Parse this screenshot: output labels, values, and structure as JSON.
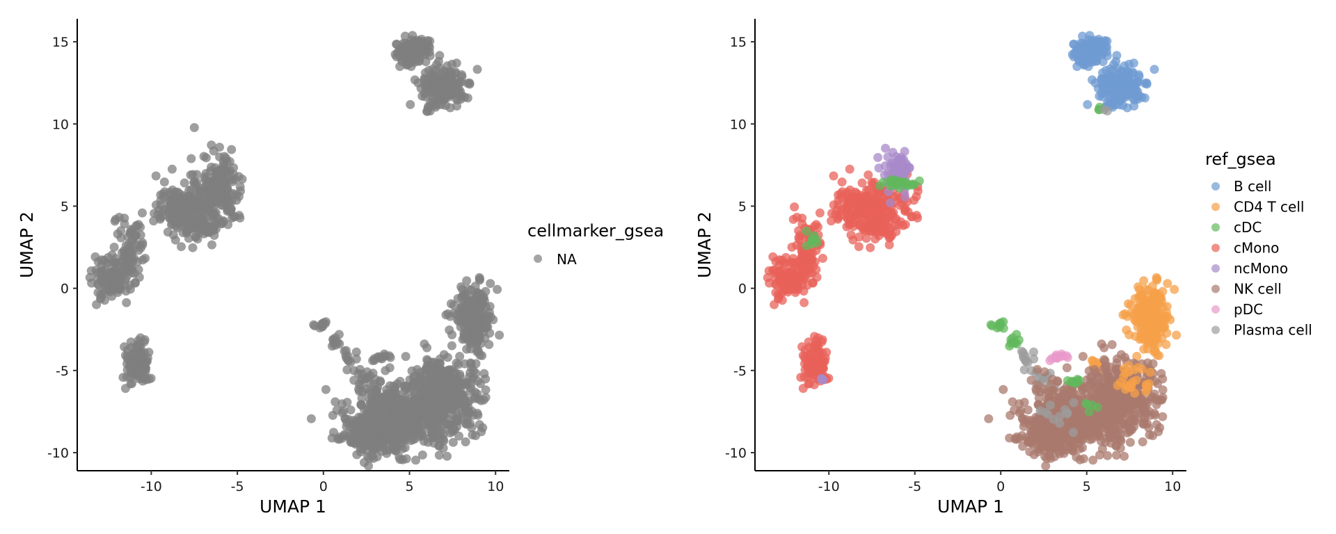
{
  "chart_data": [
    {
      "type": "scatter",
      "xlabel": "UMAP 1",
      "ylabel": "UMAP 2",
      "xlim": [
        -14.3,
        10.8
      ],
      "ylim": [
        -11.1,
        16.4
      ],
      "xticks": [
        -10,
        -5,
        0,
        5,
        10
      ],
      "yticks": [
        -10,
        -5,
        0,
        5,
        10,
        15
      ],
      "xtick_labels": [
        "-10",
        "-5",
        "0",
        "5",
        "10"
      ],
      "ytick_labels": [
        "-10",
        "-5",
        "0",
        "5",
        "10",
        "15"
      ],
      "grid": false,
      "legend": {
        "title": "cellmarker_gsea",
        "placement": "right",
        "entries": [
          {
            "label": "NA",
            "color": "#7f7f7f"
          }
        ]
      },
      "default_color": "#7f7f7f",
      "clusters": [
        {
          "x": 5.0,
          "y": 14.3,
          "sx": 0.5,
          "sy": 0.35,
          "n": 80
        },
        {
          "x": 5.6,
          "y": 14.8,
          "sx": 0.35,
          "sy": 0.2,
          "n": 50
        },
        {
          "x": 7.0,
          "y": 12.2,
          "sx": 0.65,
          "sy": 0.6,
          "n": 170
        },
        {
          "x": 6.0,
          "y": 10.8,
          "sx": 0.15,
          "sy": 0.1,
          "n": 4
        },
        {
          "x": -7.6,
          "y": 5.0,
          "sx": 1.1,
          "sy": 0.85,
          "n": 230
        },
        {
          "x": -6.1,
          "y": 6.6,
          "sx": 0.6,
          "sy": 0.9,
          "n": 110
        },
        {
          "x": -7.3,
          "y": 3.8,
          "sx": 0.7,
          "sy": 0.35,
          "n": 60
        },
        {
          "x": -11.3,
          "y": 2.5,
          "sx": 0.4,
          "sy": 1.0,
          "n": 70
        },
        {
          "x": -12.2,
          "y": 0.6,
          "sx": 0.65,
          "sy": 0.6,
          "n": 110
        },
        {
          "x": -10.8,
          "y": -4.6,
          "sx": 0.35,
          "sy": 0.7,
          "n": 120
        },
        {
          "x": -0.1,
          "y": -2.3,
          "sx": 0.2,
          "sy": 0.2,
          "n": 10
        },
        {
          "x": 0.8,
          "y": -3.3,
          "sx": 0.25,
          "sy": 0.2,
          "n": 10
        },
        {
          "x": 1.6,
          "y": -4.2,
          "sx": 0.3,
          "sy": 0.3,
          "n": 12
        },
        {
          "x": 2.4,
          "y": -5.5,
          "sx": 0.3,
          "sy": 0.3,
          "n": 12
        },
        {
          "x": 3.4,
          "y": -4.2,
          "sx": 0.3,
          "sy": 0.15,
          "n": 12
        },
        {
          "x": 8.7,
          "y": -1.8,
          "sx": 0.6,
          "sy": 0.9,
          "n": 200
        },
        {
          "x": 6.6,
          "y": -5.2,
          "sx": 0.55,
          "sy": 0.45,
          "n": 40
        },
        {
          "x": 4.5,
          "y": -7.8,
          "sx": 1.6,
          "sy": 1.0,
          "n": 550
        },
        {
          "x": 7.1,
          "y": -6.5,
          "sx": 1.1,
          "sy": 1.1,
          "n": 320
        },
        {
          "x": 3.0,
          "y": -9.2,
          "sx": 0.8,
          "sy": 0.5,
          "n": 140
        }
      ]
    },
    {
      "type": "scatter",
      "xlabel": "UMAP 1",
      "ylabel": "UMAP 2",
      "xlim": [
        -14.3,
        10.8
      ],
      "ylim": [
        -11.1,
        16.4
      ],
      "xticks": [
        -10,
        -5,
        0,
        5,
        10
      ],
      "yticks": [
        -10,
        -5,
        0,
        5,
        10,
        15
      ],
      "xtick_labels": [
        "-10",
        "-5",
        "0",
        "5",
        "10"
      ],
      "ytick_labels": [
        "-10",
        "-5",
        "0",
        "5",
        "10",
        "15"
      ],
      "grid": false,
      "legend": {
        "title": "ref_gsea",
        "placement": "right",
        "entries": [
          {
            "label": "B cell",
            "color": "#6f9bd1"
          },
          {
            "label": "CD4 T cell",
            "color": "#f5a04a"
          },
          {
            "label": "cDC",
            "color": "#62b85c"
          },
          {
            "label": "cMono",
            "color": "#e8625a"
          },
          {
            "label": "ncMono",
            "color": "#a88ac9"
          },
          {
            "label": "NK cell",
            "color": "#a97a6e"
          },
          {
            "label": "pDC",
            "color": "#e89ac9"
          },
          {
            "label": "Plasma cell",
            "color": "#9c9c9c"
          }
        ]
      },
      "clusters": [
        {
          "x": 5.0,
          "y": 14.3,
          "sx": 0.5,
          "sy": 0.35,
          "n": 80,
          "color": "#6f9bd1"
        },
        {
          "x": 5.6,
          "y": 14.8,
          "sx": 0.35,
          "sy": 0.2,
          "n": 50,
          "color": "#6f9bd1"
        },
        {
          "x": 7.0,
          "y": 12.2,
          "sx": 0.65,
          "sy": 0.6,
          "n": 170,
          "color": "#6f9bd1"
        },
        {
          "x": 5.7,
          "y": 10.9,
          "sx": 0.1,
          "sy": 0.08,
          "n": 3,
          "color": "#62b85c"
        },
        {
          "x": 6.1,
          "y": 10.8,
          "sx": 0.08,
          "sy": 0.06,
          "n": 2,
          "color": "#9c9c9c"
        },
        {
          "x": -7.6,
          "y": 5.0,
          "sx": 1.1,
          "sy": 0.85,
          "n": 230,
          "color": "#e8625a"
        },
        {
          "x": -7.3,
          "y": 3.8,
          "sx": 0.7,
          "sy": 0.35,
          "n": 60,
          "color": "#e8625a"
        },
        {
          "x": -6.1,
          "y": 7.1,
          "sx": 0.4,
          "sy": 0.6,
          "n": 70,
          "color": "#a88ac9"
        },
        {
          "x": -5.8,
          "y": 6.4,
          "sx": 0.5,
          "sy": 0.15,
          "n": 25,
          "color": "#62b85c"
        },
        {
          "x": -11.3,
          "y": 2.5,
          "sx": 0.4,
          "sy": 1.0,
          "n": 70,
          "color": "#e8625a"
        },
        {
          "x": -11.0,
          "y": 3.0,
          "sx": 0.15,
          "sy": 0.3,
          "n": 8,
          "color": "#62b85c"
        },
        {
          "x": -12.2,
          "y": 0.6,
          "sx": 0.65,
          "sy": 0.6,
          "n": 110,
          "color": "#e8625a"
        },
        {
          "x": -10.8,
          "y": -4.6,
          "sx": 0.35,
          "sy": 0.7,
          "n": 120,
          "color": "#e8625a"
        },
        {
          "x": -10.4,
          "y": -5.5,
          "sx": 0.1,
          "sy": 0.1,
          "n": 4,
          "color": "#a88ac9"
        },
        {
          "x": -0.1,
          "y": -2.3,
          "sx": 0.2,
          "sy": 0.2,
          "n": 10,
          "color": "#62b85c"
        },
        {
          "x": 0.8,
          "y": -3.3,
          "sx": 0.25,
          "sy": 0.2,
          "n": 10,
          "color": "#62b85c"
        },
        {
          "x": 1.6,
          "y": -4.2,
          "sx": 0.3,
          "sy": 0.3,
          "n": 12,
          "color": "#9c9c9c"
        },
        {
          "x": 2.4,
          "y": -5.5,
          "sx": 0.3,
          "sy": 0.3,
          "n": 12,
          "color": "#9c9c9c"
        },
        {
          "x": 3.4,
          "y": -4.2,
          "sx": 0.3,
          "sy": 0.15,
          "n": 12,
          "color": "#e89ac9"
        },
        {
          "x": 8.7,
          "y": -1.8,
          "sx": 0.6,
          "sy": 0.9,
          "n": 200,
          "color": "#f5a04a"
        },
        {
          "x": 5.4,
          "y": -4.7,
          "sx": 0.3,
          "sy": 0.2,
          "n": 10,
          "color": "#f5a04a"
        },
        {
          "x": 4.5,
          "y": -7.8,
          "sx": 1.6,
          "sy": 1.0,
          "n": 550,
          "color": "#a97a6e"
        },
        {
          "x": 7.1,
          "y": -6.5,
          "sx": 1.1,
          "sy": 1.1,
          "n": 320,
          "color": "#a97a6e"
        },
        {
          "x": 3.0,
          "y": -9.2,
          "sx": 0.8,
          "sy": 0.5,
          "n": 140,
          "color": "#a97a6e"
        },
        {
          "x": 4.3,
          "y": -5.7,
          "sx": 0.3,
          "sy": 0.1,
          "n": 8,
          "color": "#62b85c"
        },
        {
          "x": 5.3,
          "y": -7.1,
          "sx": 0.2,
          "sy": 0.15,
          "n": 5,
          "color": "#62b85c"
        },
        {
          "x": 3.5,
          "y": -7.8,
          "sx": 0.4,
          "sy": 0.4,
          "n": 12,
          "color": "#9c9c9c"
        },
        {
          "x": 7.7,
          "y": -5.5,
          "sx": 0.6,
          "sy": 0.5,
          "n": 25,
          "color": "#f5a04a"
        }
      ]
    }
  ]
}
